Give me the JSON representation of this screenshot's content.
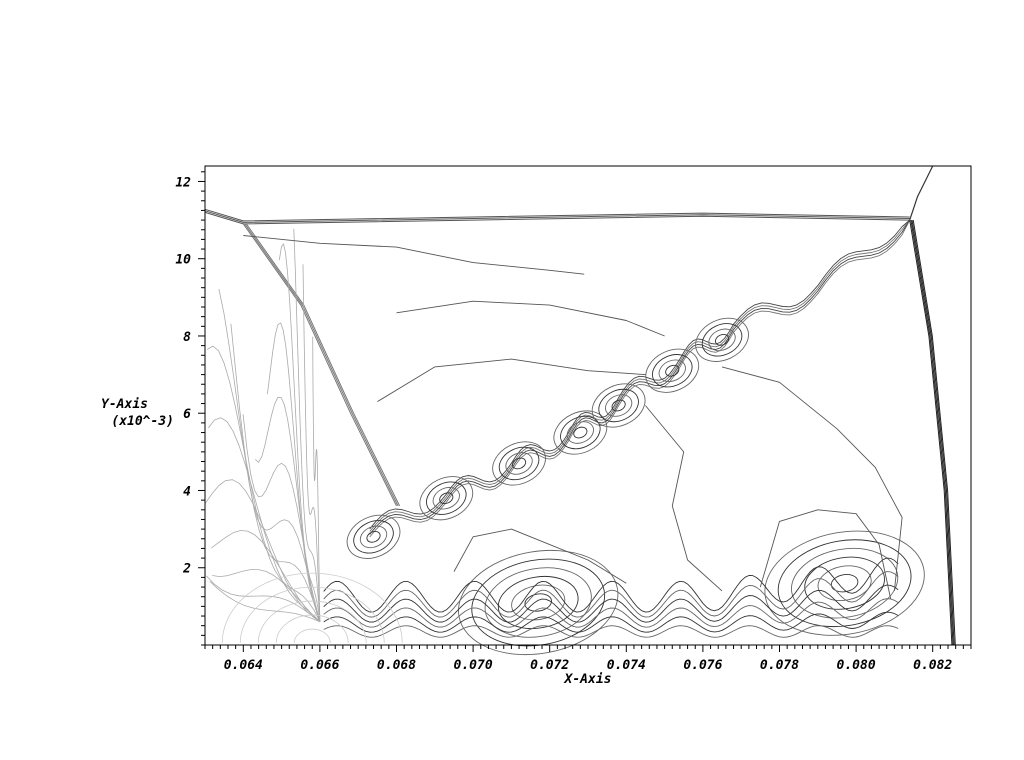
{
  "chart_data": {
    "type": "contour",
    "xlabel": "X-Axis",
    "ylabel": "Y-Axis",
    "ylabel_scale": "(x10^-3)",
    "xlim": [
      0.063,
      0.083
    ],
    "ylim": [
      0.0,
      12.4
    ],
    "x_ticks": [
      "0.064",
      "0.066",
      "0.068",
      "0.070",
      "0.072",
      "0.074",
      "0.076",
      "0.078",
      "0.080",
      "0.082"
    ],
    "x_tick_values": [
      0.064,
      0.066,
      0.068,
      0.07,
      0.072,
      0.074,
      0.076,
      0.078,
      0.08,
      0.082
    ],
    "y_ticks": [
      "2",
      "4",
      "6",
      "8",
      "10",
      "12"
    ],
    "y_tick_values": [
      2,
      4,
      6,
      8,
      10,
      12
    ],
    "grid": false,
    "legend": "none",
    "line_color": "#000000",
    "background": "#ffffff",
    "shock_front": [
      [
        0.063,
        11.2
      ],
      [
        0.064,
        10.9
      ],
      [
        0.07,
        11.0
      ],
      [
        0.076,
        11.1
      ],
      [
        0.0814,
        11.0
      ]
    ],
    "oblique_shock": [
      [
        0.064,
        10.9
      ],
      [
        0.0655,
        8.8
      ],
      [
        0.0668,
        6.0
      ],
      [
        0.068,
        3.6
      ]
    ],
    "mach_stem": [
      [
        0.0814,
        11.0
      ],
      [
        0.0819,
        8.0
      ],
      [
        0.0823,
        4.0
      ],
      [
        0.0825,
        0.0
      ]
    ],
    "shear_layer": [
      [
        0.0673,
        2.9
      ],
      [
        0.0693,
        3.8
      ],
      [
        0.071,
        4.6
      ],
      [
        0.0725,
        5.4
      ],
      [
        0.0738,
        6.3
      ],
      [
        0.0754,
        7.3
      ],
      [
        0.0768,
        8.2
      ],
      [
        0.079,
        9.2
      ],
      [
        0.0814,
        11.0
      ]
    ],
    "vortex_centers": [
      [
        0.0674,
        2.8
      ],
      [
        0.0693,
        3.8
      ],
      [
        0.0712,
        4.7
      ],
      [
        0.0728,
        5.5
      ],
      [
        0.0738,
        6.2
      ],
      [
        0.0752,
        7.1
      ],
      [
        0.0765,
        7.9
      ],
      [
        0.0717,
        1.1
      ],
      [
        0.0797,
        1.6
      ]
    ]
  }
}
